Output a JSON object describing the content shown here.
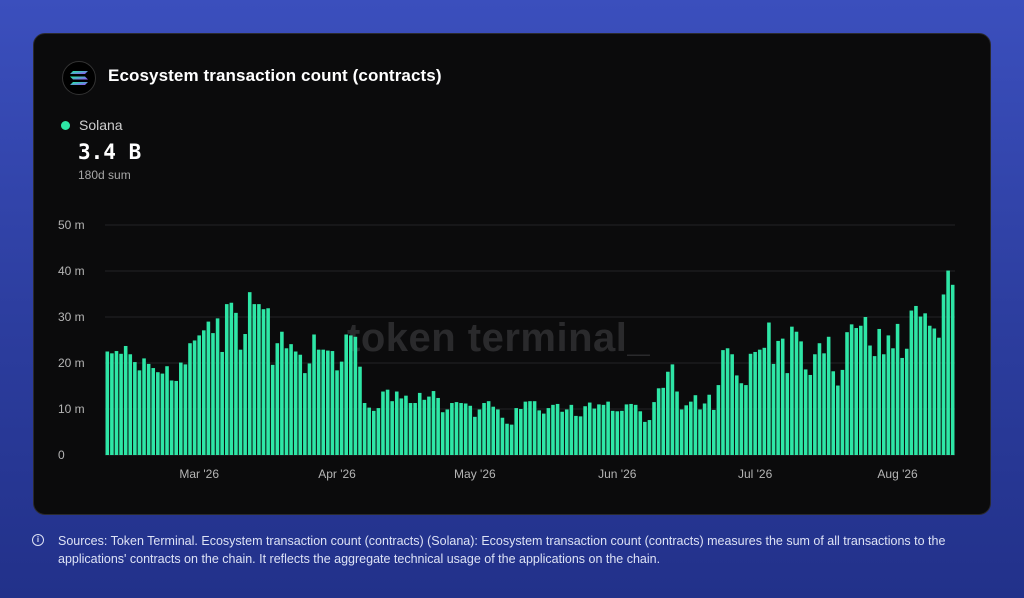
{
  "header": {
    "title": "Ecosystem transaction count (contracts)",
    "logo_icon": "solana-logo-icon"
  },
  "legend": {
    "name": "Solana",
    "color": "#2ee6a6",
    "value": "3.4 B",
    "sub": "180d sum"
  },
  "watermark": "token terminal_",
  "footer": {
    "info_icon": "info-icon",
    "text": "Sources: Token Terminal. Ecosystem transaction count (contracts) (Solana): Ecosystem transaction count (contracts) measures the sum of all transactions to the applications' contracts on the chain. It reflects the aggregate technical usage of the applications on the chain."
  },
  "chart_data": {
    "type": "bar",
    "ylim": [
      0,
      50
    ],
    "yticks": [
      {
        "value": 0,
        "label": "0"
      },
      {
        "value": 10,
        "label": "10 m"
      },
      {
        "value": 20,
        "label": "20 m"
      },
      {
        "value": 30,
        "label": "30 m"
      },
      {
        "value": 40,
        "label": "40 m"
      },
      {
        "value": 50,
        "label": "50 m"
      }
    ],
    "xticks": [
      {
        "index": 20,
        "label": "Mar '26"
      },
      {
        "index": 50,
        "label": "Apr '26"
      },
      {
        "index": 80,
        "label": "May '26"
      },
      {
        "index": 111,
        "label": "Jun '26"
      },
      {
        "index": 141,
        "label": "Jul '26"
      },
      {
        "index": 172,
        "label": "Aug '26"
      }
    ],
    "grid": true,
    "series": [
      {
        "name": "Solana",
        "color": "#2ee6a6",
        "values": [
          22.5,
          22.1,
          22.6,
          22.0,
          23.7,
          21.9,
          20.2,
          18.4,
          21.0,
          19.8,
          18.9,
          18.0,
          17.7,
          19.3,
          16.2,
          16.1,
          20.1,
          19.7,
          24.3,
          24.9,
          26.0,
          27.1,
          29.0,
          26.5,
          29.7,
          22.4,
          32.8,
          33.1,
          30.9,
          22.9,
          26.3,
          35.4,
          32.8,
          32.8,
          31.7,
          31.9,
          19.6,
          24.3,
          26.8,
          23.2,
          24.1,
          22.5,
          21.8,
          17.8,
          19.9,
          26.2,
          22.9,
          22.9,
          22.7,
          22.6,
          18.4,
          20.3,
          26.2,
          26.0,
          25.7,
          19.2,
          11.3,
          10.3,
          9.6,
          10.2,
          13.8,
          14.2,
          11.7,
          13.8,
          12.3,
          12.9,
          11.3,
          11.3,
          13.5,
          12.0,
          12.7,
          13.9,
          12.4,
          9.3,
          9.9,
          11.3,
          11.5,
          11.3,
          11.2,
          10.7,
          8.3,
          9.9,
          11.3,
          11.7,
          10.5,
          9.9,
          8.1,
          6.8,
          6.6,
          10.2,
          10.0,
          11.6,
          11.7,
          11.7,
          9.7,
          9.0,
          10.2,
          10.9,
          11.1,
          9.4,
          9.9,
          10.9,
          8.5,
          8.4,
          10.6,
          11.4,
          10.1,
          11.0,
          10.9,
          11.6,
          9.6,
          9.5,
          9.6,
          11.0,
          11.1,
          10.9,
          9.5,
          7.2,
          7.6,
          11.5,
          14.5,
          14.6,
          18.1,
          19.7,
          13.8,
          9.9,
          10.8,
          11.6,
          13.0,
          9.9,
          11.2,
          13.1,
          9.8,
          15.2,
          22.8,
          23.2,
          21.9,
          17.3,
          15.6,
          15.2,
          22.0,
          22.4,
          22.9,
          23.3,
          28.8,
          19.8,
          24.8,
          25.3,
          17.8,
          27.9,
          26.8,
          24.7,
          18.6,
          17.4,
          21.9,
          24.3,
          22.1,
          25.7,
          18.2,
          15.1,
          18.5,
          26.7,
          28.4,
          27.6,
          28.1,
          30.0,
          23.8,
          21.5,
          27.4,
          21.9,
          26.0,
          23.2,
          28.5,
          21.1,
          23.1,
          31.4,
          32.4,
          30.1,
          30.8,
          28.1,
          27.5,
          25.5,
          34.9,
          40.1,
          37.0
        ]
      }
    ]
  }
}
